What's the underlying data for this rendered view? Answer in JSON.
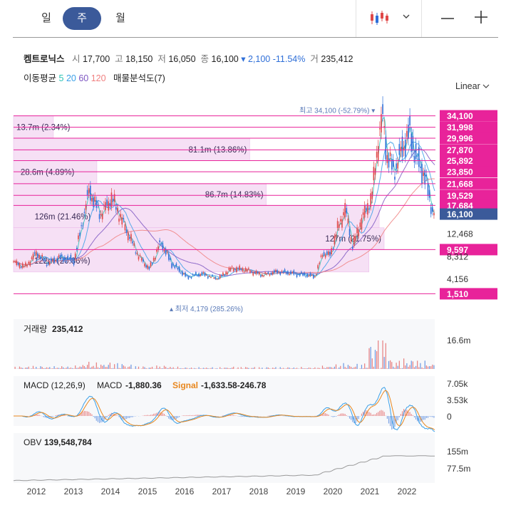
{
  "tabs": [
    {
      "label": "일",
      "active": false
    },
    {
      "label": "주",
      "active": true
    },
    {
      "label": "월",
      "active": false
    }
  ],
  "toolbar": {
    "chart_type_icon": "candlestick-icon",
    "dropdown_icon": "chevron-down-icon",
    "zoom_out_icon": "minus-icon",
    "zoom_in_icon": "plus-icon"
  },
  "stock": {
    "name": "켐트로닉스",
    "open_label": "시",
    "open": "17,700",
    "high_label": "고",
    "high": "18,150",
    "low_label": "저",
    "low": "16,050",
    "close_label": "종",
    "close": "16,100",
    "change": "▾ 2,100",
    "change_pct": "-11.54%",
    "volume_label": "거",
    "volume": "235,412"
  },
  "indicators": {
    "ma_label": "이동평균",
    "ma5": "5",
    "ma20": "20",
    "ma60": "60",
    "ma120": "120",
    "vp_label": "매물분석도(7)"
  },
  "scale_label": "Linear",
  "colors": {
    "up": "#e04848",
    "down": "#2f6fd8",
    "pink": "#e8239a",
    "ma5": "#2ec4b6",
    "ma20": "#3aa0e8",
    "ma60": "#7e57c2",
    "ma120": "#f08080",
    "accent": "#3b5a9a"
  },
  "chart_data": {
    "type": "candlestick",
    "x_ticks": [
      "2012",
      "2013",
      "2014",
      "2015",
      "2016",
      "2017",
      "2018",
      "2019",
      "2020",
      "2021",
      "2022"
    ],
    "price_axis": {
      "min": 0,
      "max": 36000,
      "labels": [
        "12,468",
        "8,312",
        "4,156"
      ]
    },
    "max_marker": "최고 34,100 (-52.79%)",
    "min_marker": "최저 4,179 (285.26%)",
    "price_levels": [
      {
        "label": "34,100",
        "value": 34100
      },
      {
        "label": "31,998",
        "value": 31998
      },
      {
        "label": "29,996",
        "value": 29996
      },
      {
        "label": "27,870",
        "value": 27870
      },
      {
        "label": "25,892",
        "value": 25892
      },
      {
        "label": "23,850",
        "value": 23850
      },
      {
        "label": "21,668",
        "value": 21668
      },
      {
        "label": "19,529",
        "value": 19529
      },
      {
        "label": "17,684",
        "value": 17684
      },
      {
        "label": "9,597",
        "value": 9597
      },
      {
        "label": "1,510",
        "value": 1510
      }
    ],
    "current_price": {
      "label": "16,100",
      "value": 16100
    },
    "volume_profile": [
      {
        "label": "13.7m (2.34%)",
        "pct": 2.34
      },
      {
        "label": "81.1m (13.86%)",
        "pct": 13.86
      },
      {
        "label": "28.6m (4.89%)",
        "pct": 4.89
      },
      {
        "label": "86.7m (14.83%)",
        "pct": 14.83
      },
      {
        "label": "126m (21.46%)",
        "pct": 21.46
      },
      {
        "label": "127m (21.75%)",
        "pct": 21.75
      },
      {
        "label": "122m (20.86%)",
        "pct": 20.86
      }
    ],
    "volume_panel": {
      "label": "거래량",
      "value": "235,412",
      "axis": [
        "16.6m"
      ]
    },
    "macd_panel": {
      "label": "MACD (12,26,9)",
      "macd_label": "MACD",
      "macd": "-1,880.36",
      "signal_label": "Signal",
      "signal": "-1,633.58",
      "hist": "-246.78",
      "axis": [
        "7.05k",
        "3.53k",
        "0"
      ]
    },
    "obv_panel": {
      "label": "OBV",
      "value": "139,548,784",
      "axis": [
        "155m",
        "77.5m"
      ]
    }
  }
}
